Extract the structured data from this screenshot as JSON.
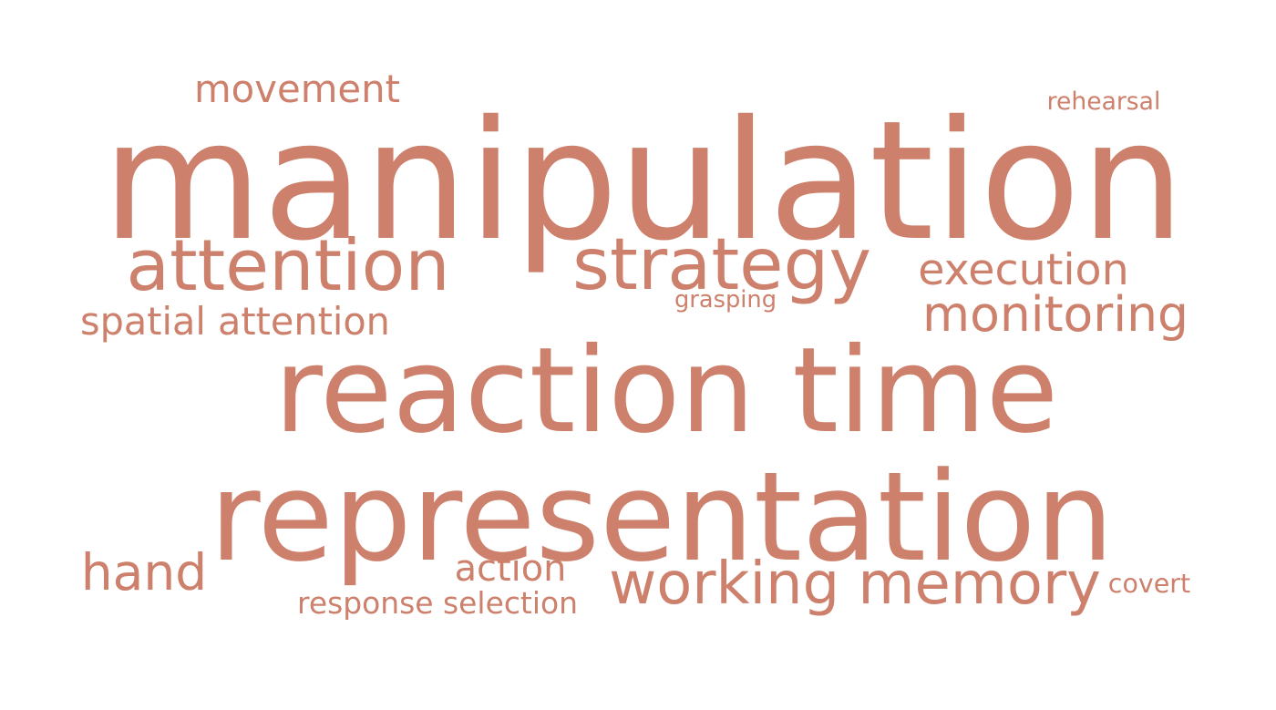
{
  "word_cloud": {
    "color": "#cd806b",
    "words": [
      {
        "id": "manipulation",
        "text": "manipulation",
        "weight": 1.0
      },
      {
        "id": "reaction-time",
        "text": "reaction time",
        "weight": 0.95
      },
      {
        "id": "representation",
        "text": "representation",
        "weight": 0.85
      },
      {
        "id": "attention",
        "text": "attention",
        "weight": 0.55
      },
      {
        "id": "strategy",
        "text": "strategy",
        "weight": 0.45
      },
      {
        "id": "execution",
        "text": "execution",
        "weight": 0.35
      },
      {
        "id": "monitoring",
        "text": "monitoring",
        "weight": 0.35
      },
      {
        "id": "working-memory",
        "text": "working memory",
        "weight": 0.4
      },
      {
        "id": "hand",
        "text": "hand",
        "weight": 0.35
      },
      {
        "id": "movement",
        "text": "movement",
        "weight": 0.3
      },
      {
        "id": "spatial-attention",
        "text": "spatial attention",
        "weight": 0.25
      },
      {
        "id": "action",
        "text": "action",
        "weight": 0.3
      },
      {
        "id": "response-selection",
        "text": "response selection",
        "weight": 0.2
      },
      {
        "id": "rehearsal",
        "text": "rehearsal",
        "weight": 0.15
      },
      {
        "id": "grasping",
        "text": "grasping",
        "weight": 0.13
      },
      {
        "id": "covert",
        "text": "covert",
        "weight": 0.17
      }
    ]
  }
}
